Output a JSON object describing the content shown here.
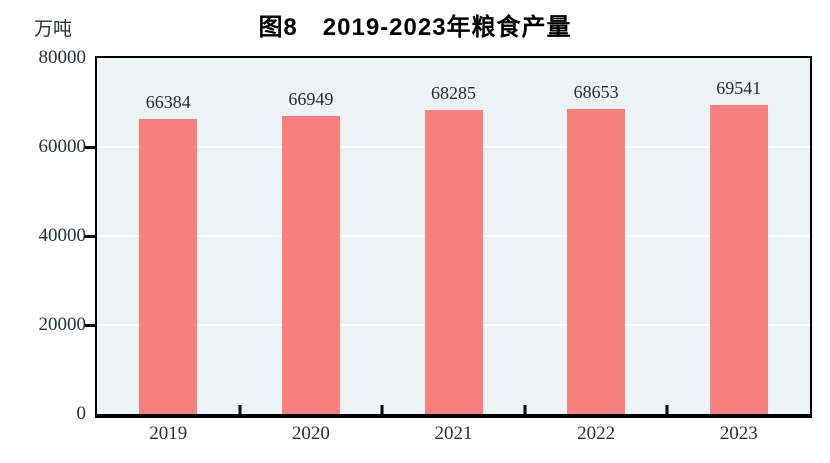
{
  "header": {
    "title": "图8　2019-2023年粮食产量"
  },
  "axes": {
    "unit_label": "万吨"
  },
  "chart_data": {
    "type": "bar",
    "title": "图8　2019-2023年粮食产量",
    "categories": [
      "2019",
      "2020",
      "2021",
      "2022",
      "2023"
    ],
    "values": [
      66384,
      66949,
      68285,
      68653,
      69541
    ],
    "value_labels": [
      "66384",
      "66949",
      "68285",
      "68653",
      "69541"
    ],
    "xlabel": "",
    "ylabel": "万吨",
    "ylim": [
      0,
      80000
    ],
    "yticks": [
      0,
      20000,
      40000,
      60000,
      80000
    ],
    "grid": true,
    "legend_position": "none",
    "bar_color": "#fa8080",
    "plot_bg_color": "#edf4f6",
    "gridline_color": "#ffffff",
    "axis_color": "#000000",
    "label_color": "#2a2f38"
  }
}
